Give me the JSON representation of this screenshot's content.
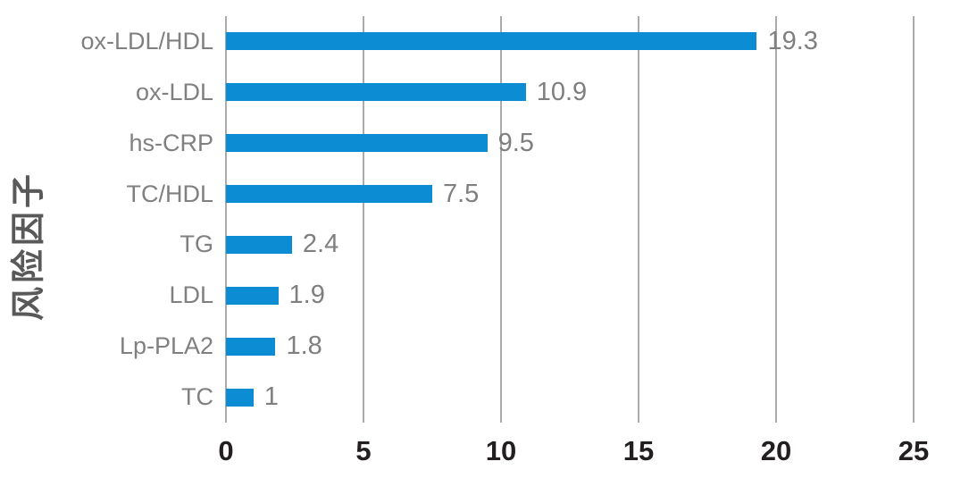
{
  "chart_data": {
    "type": "bar",
    "orientation": "horizontal",
    "title": "",
    "xlabel": "",
    "ylabel": "风险因子",
    "categories": [
      "ox-LDL/HDL",
      "ox-LDL",
      "hs-CRP",
      "TC/HDL",
      "TG",
      "LDL",
      "Lp-PLA2",
      "TC"
    ],
    "values": [
      19.3,
      10.9,
      9.5,
      7.5,
      2.4,
      1.9,
      1.8,
      1
    ],
    "value_labels": [
      "19.3",
      "10.9",
      "9.5",
      "7.5",
      "2.4",
      "1.9",
      "1.8",
      "1"
    ],
    "xlim": [
      0,
      25
    ],
    "xticks": [
      "0",
      "5",
      "10",
      "15",
      "20",
      "25"
    ],
    "grid": true,
    "legend": false,
    "colors": {
      "bar": "#0b8cd3",
      "gridline": "#ababab",
      "category_label": "#808080",
      "value_label": "#7f7f7f",
      "tick_label": "#231f20",
      "axis_title": "#595959",
      "background": "#ffffff"
    }
  }
}
